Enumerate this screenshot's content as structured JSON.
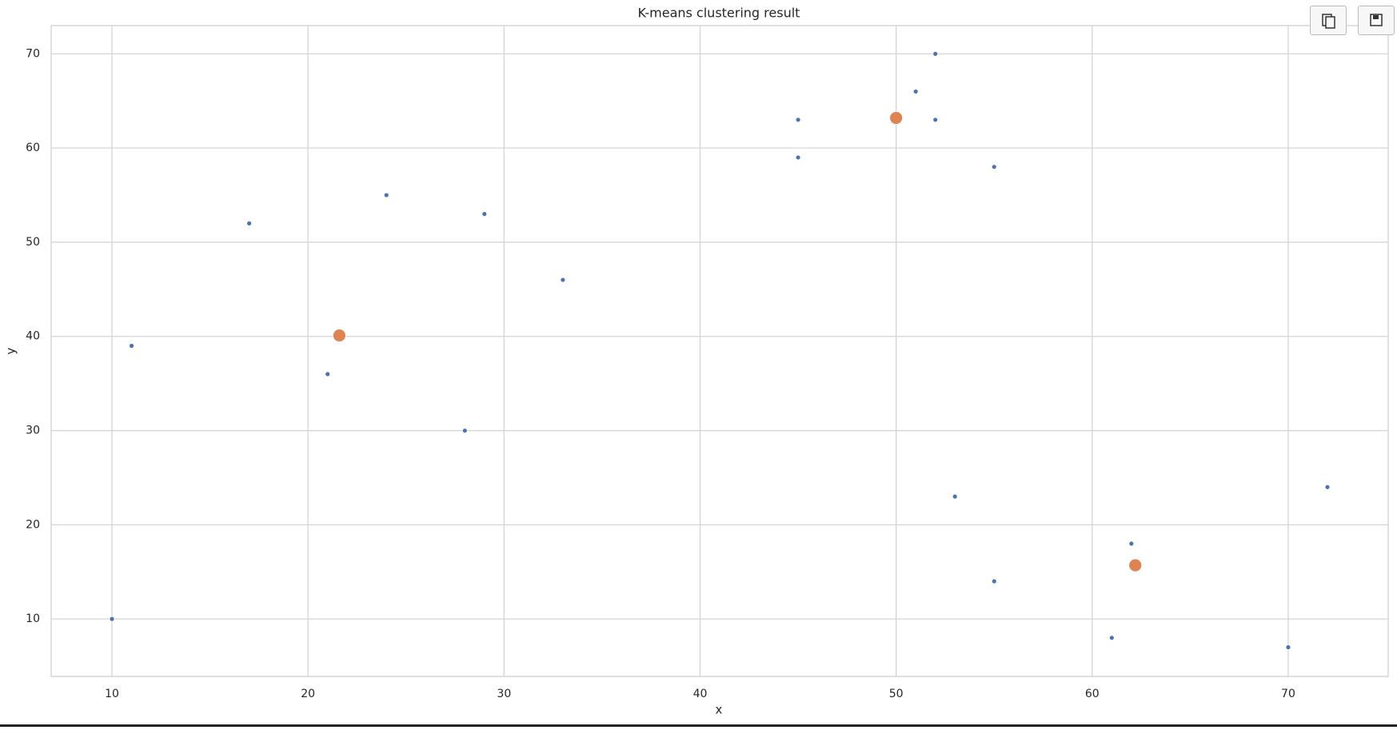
{
  "chart_data": {
    "type": "scatter",
    "title": "K-means clustering result",
    "x_label": "x",
    "y_label": "y",
    "xlim": [
      6.9,
      75.1
    ],
    "ylim": [
      3.9,
      73.0
    ],
    "xticks": [
      10,
      20,
      30,
      40,
      50,
      60,
      70
    ],
    "yticks": [
      10,
      20,
      30,
      40,
      50,
      60,
      70
    ],
    "grid": true,
    "series": [
      {
        "color": "#4c72b0",
        "size": 3,
        "x": [
          10,
          11,
          17,
          21,
          24,
          28,
          29,
          33,
          45,
          45,
          51,
          52,
          52,
          55,
          53,
          55,
          62,
          61,
          70,
          72
        ],
        "y": [
          10,
          39,
          52,
          36,
          55,
          30,
          53,
          46,
          63,
          59,
          66,
          70,
          63,
          58,
          23,
          14,
          18,
          8,
          7,
          24
        ]
      },
      {
        "color": "#dd8452",
        "size": 8,
        "x": [
          21.6,
          50,
          62.2
        ],
        "y": [
          40.1,
          63.2,
          15.7
        ]
      }
    ]
  }
}
